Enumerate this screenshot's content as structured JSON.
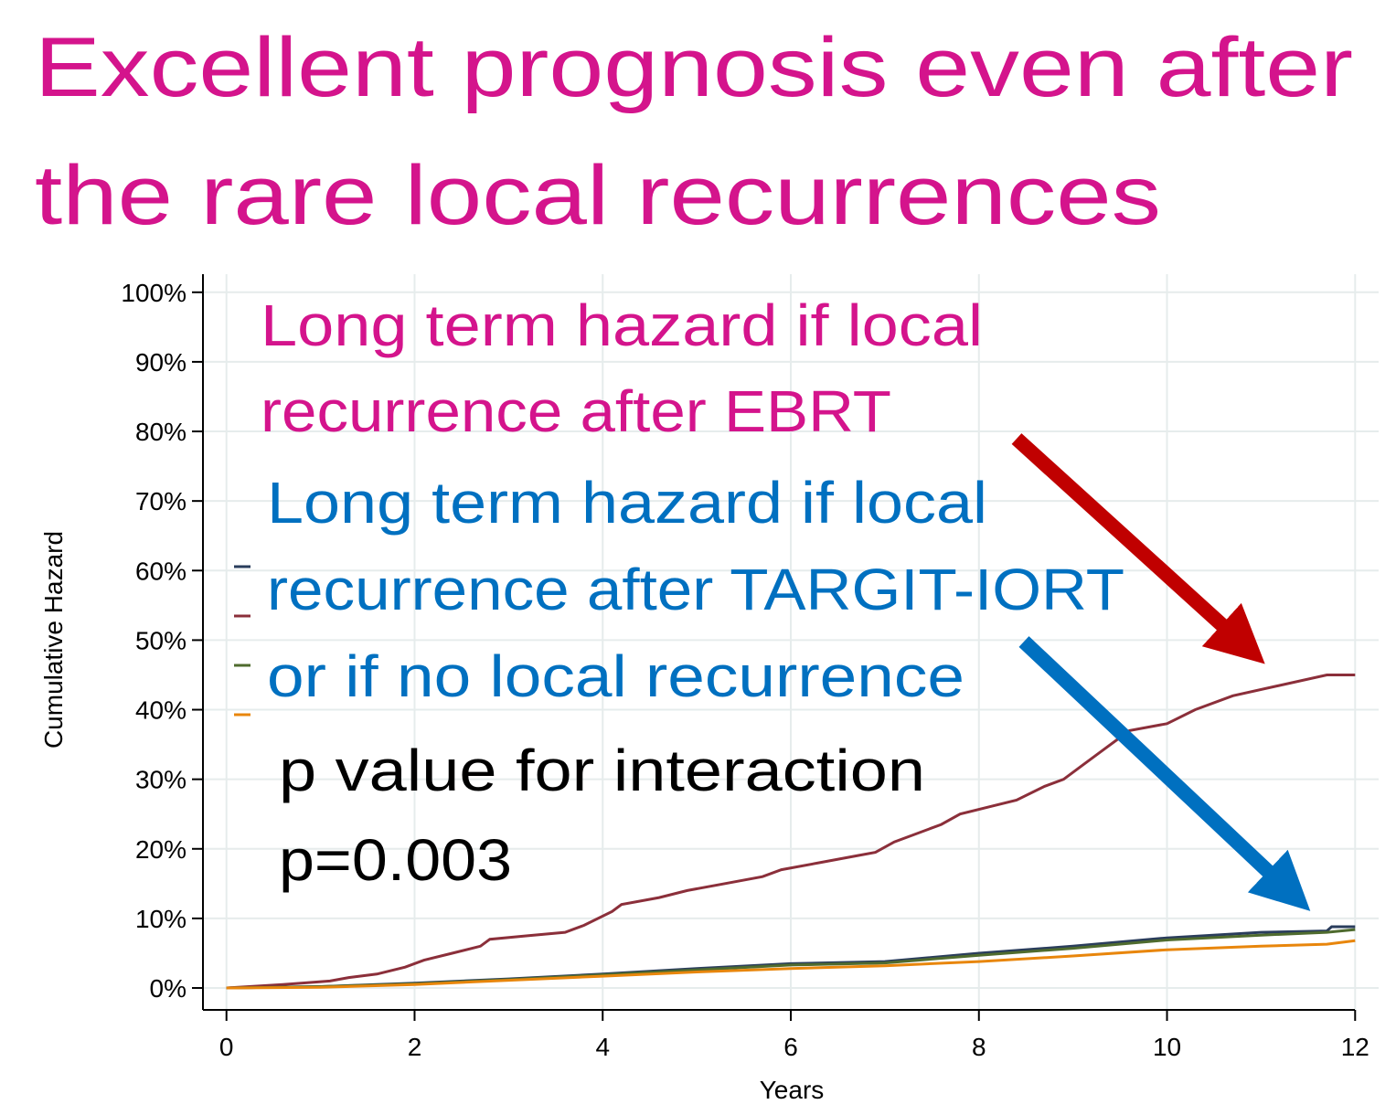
{
  "chart_data": {
    "type": "line",
    "title": [
      "Excellent prognosis even after",
      "the rare local recurrences"
    ],
    "title_color": "#d4148c",
    "xlabel": "Years",
    "ylabel": "Cumulative Hazard",
    "xlim": [
      -0.25,
      12.25
    ],
    "ylim": [
      -3.15,
      102.6
    ],
    "xticks": [
      0,
      2,
      4,
      6,
      8,
      10,
      12
    ],
    "yticks": [
      {
        "value": 0,
        "label": "0%"
      },
      {
        "value": 10,
        "label": "10%"
      },
      {
        "value": 20,
        "label": "20%"
      },
      {
        "value": 30,
        "label": "30%"
      },
      {
        "value": 40,
        "label": "40%"
      },
      {
        "value": 50,
        "label": "50%"
      },
      {
        "value": 60,
        "label": "60%"
      },
      {
        "value": 70,
        "label": "70%"
      },
      {
        "value": 80,
        "label": "80%"
      },
      {
        "value": 90,
        "label": "90%"
      },
      {
        "value": 100,
        "label": "100%"
      }
    ],
    "grid": true,
    "series": [
      {
        "color": "#2a3d5c",
        "x": [
          0,
          1,
          2,
          3,
          4,
          5,
          6,
          7,
          8,
          9,
          10,
          11,
          11.7,
          11.75,
          12
        ],
        "values": [
          0,
          0.2,
          0.7,
          1.3,
          2,
          2.8,
          3.5,
          3.8,
          5,
          6,
          7.2,
          8,
          8.2,
          8.8,
          8.8
        ]
      },
      {
        "color": "#8b2f3a",
        "x": [
          0,
          0.6,
          1.1,
          1.3,
          1.6,
          1.9,
          2.1,
          2.4,
          2.7,
          2.8,
          3.2,
          3.6,
          3.8,
          4.1,
          4.2,
          4.6,
          4.9,
          5.3,
          5.7,
          5.9,
          6.3,
          6.7,
          6.9,
          7.1,
          7.3,
          7.6,
          7.8,
          8.1,
          8.4,
          8.7,
          8.9,
          9.1,
          9.3,
          9.5,
          9.6,
          10.0,
          10.3,
          10.7,
          11.7,
          12
        ],
        "values": [
          0,
          0.5,
          1,
          1.5,
          2,
          3,
          4,
          5,
          6,
          7,
          7.5,
          8,
          9,
          11,
          12,
          13,
          14,
          15,
          16,
          17,
          18,
          19,
          19.5,
          21,
          22,
          23.5,
          25,
          26,
          27,
          29,
          30,
          32,
          34,
          36,
          37,
          38,
          40,
          42,
          45,
          45
        ]
      },
      {
        "color": "#4f6b2e",
        "x": [
          0,
          1,
          2,
          3,
          4,
          5,
          6,
          7,
          8,
          9,
          10,
          11,
          11.7,
          12
        ],
        "values": [
          0,
          0.2,
          0.6,
          1.2,
          1.9,
          2.6,
          3.3,
          3.6,
          4.7,
          5.7,
          6.9,
          7.6,
          8,
          8.4
        ]
      },
      {
        "color": "#e8860c",
        "x": [
          0,
          1,
          2,
          3,
          4,
          5,
          6,
          7,
          8,
          9,
          10,
          11,
          11.7,
          12
        ],
        "values": [
          0,
          0.1,
          0.5,
          1.1,
          1.7,
          2.3,
          2.8,
          3.2,
          3.8,
          4.6,
          5.5,
          6,
          6.3,
          6.8
        ]
      }
    ],
    "annotations": [
      {
        "text": "Long term hazard if local",
        "color": "#d4148c"
      },
      {
        "text": "recurrence after EBRT",
        "color": "#d4148c"
      },
      {
        "text": "Long term hazard if local",
        "color": "#0070c0"
      },
      {
        "text": "recurrence after TARGIT-IORT",
        "color": "#0070c0"
      },
      {
        "text": "or if no local recurrence",
        "color": "#0070c0"
      },
      {
        "text": "p value for interaction",
        "color": "#000000"
      },
      {
        "text": "p=0.003",
        "color": "#000000"
      }
    ]
  }
}
